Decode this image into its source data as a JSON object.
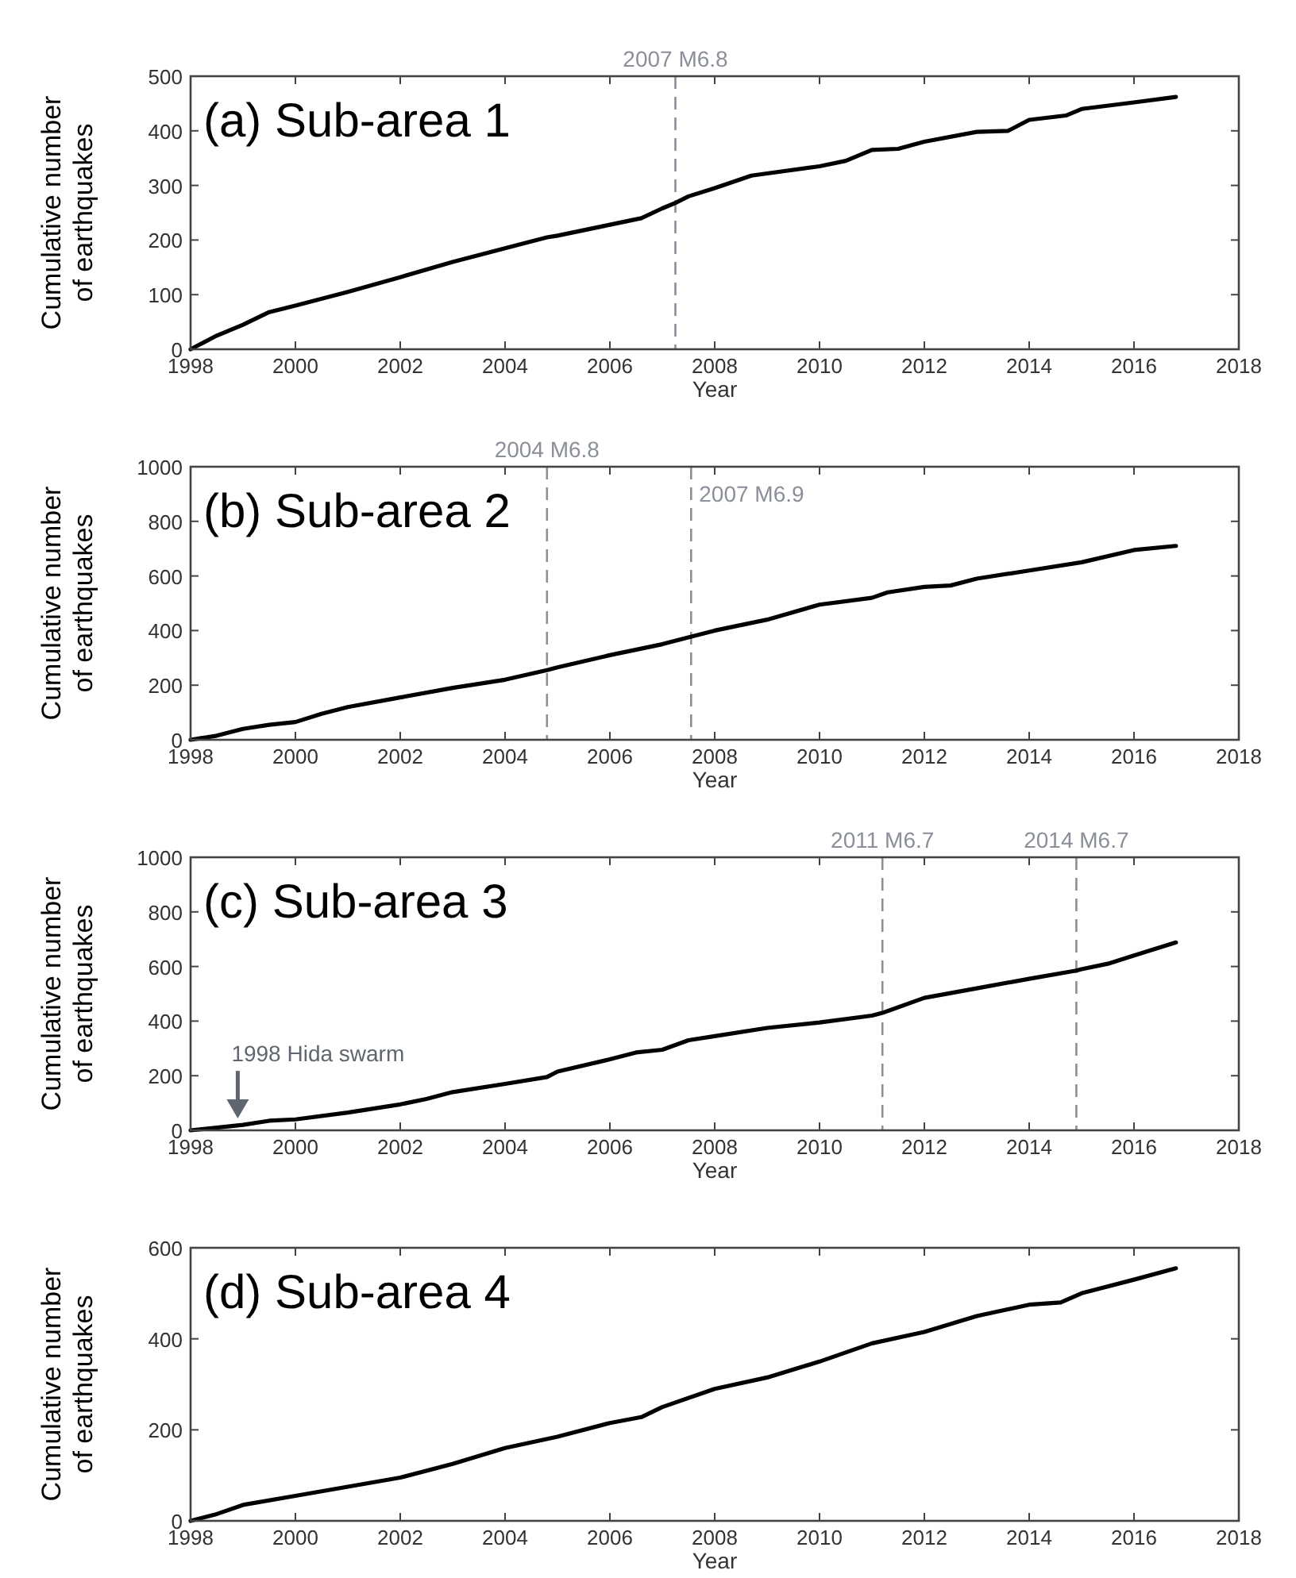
{
  "chart_data": [
    {
      "type": "line",
      "title": "(a) Sub-area 1",
      "xlabel": "Year",
      "ylabel": "Cumulative number\nof earthquakes",
      "color": "#000000",
      "grid": false,
      "xlim": [
        1998,
        2018
      ],
      "xticks": [
        1998,
        2000,
        2002,
        2004,
        2006,
        2008,
        2010,
        2012,
        2014,
        2016,
        2018
      ],
      "ylim": [
        0,
        500
      ],
      "yticks": [
        0,
        100,
        200,
        300,
        400,
        500
      ],
      "x": [
        1998,
        1998.5,
        1999,
        1999.5,
        2000,
        2001,
        2002,
        2003,
        2004,
        2004.8,
        2005,
        2006,
        2006.6,
        2007,
        2007.25,
        2007.5,
        2008,
        2008.7,
        2009,
        2010,
        2010.5,
        2011,
        2011.5,
        2012,
        2013,
        2013.6,
        2014,
        2014.7,
        2015,
        2016,
        2016.8
      ],
      "values": [
        0,
        25,
        45,
        68,
        80,
        105,
        132,
        160,
        185,
        205,
        208,
        228,
        240,
        258,
        268,
        280,
        295,
        318,
        322,
        335,
        345,
        365,
        367,
        380,
        398,
        400,
        420,
        428,
        440,
        452,
        462
      ],
      "ref_lines": [
        {
          "axis": "x",
          "value": 2007.25,
          "label": "2007 M6.8",
          "color": "#8a8f99",
          "line_style": "dashed"
        }
      ]
    },
    {
      "type": "line",
      "title": "(b) Sub-area 2",
      "xlabel": "Year",
      "ylabel": "Cumulative number\nof earthquakes",
      "color": "#000000",
      "grid": false,
      "xlim": [
        1998,
        2018
      ],
      "xticks": [
        1998,
        2000,
        2002,
        2004,
        2006,
        2008,
        2010,
        2012,
        2014,
        2016,
        2018
      ],
      "ylim": [
        0,
        1000
      ],
      "yticks": [
        0,
        200,
        400,
        600,
        800,
        1000
      ],
      "x": [
        1998,
        1998.5,
        1999,
        1999.5,
        2000,
        2000.5,
        2001,
        2002,
        2003,
        2004,
        2004.8,
        2005,
        2006,
        2007,
        2007.6,
        2008,
        2009,
        2010,
        2011,
        2011.3,
        2012,
        2012.5,
        2013,
        2014,
        2015,
        2016,
        2016.8
      ],
      "values": [
        0,
        15,
        40,
        55,
        65,
        95,
        120,
        155,
        190,
        220,
        255,
        265,
        310,
        350,
        380,
        400,
        440,
        495,
        520,
        540,
        560,
        565,
        590,
        620,
        650,
        695,
        710
      ],
      "ref_lines": [
        {
          "axis": "x",
          "value": 2004.8,
          "label": "2004 M6.8",
          "color": "#8a8f99",
          "line_style": "dashed"
        },
        {
          "axis": "x",
          "value": 2007.55,
          "label": "2007 M6.9",
          "color": "#8a8f99",
          "line_style": "dashed"
        }
      ]
    },
    {
      "type": "line",
      "title": "(c) Sub-area 3",
      "xlabel": "Year",
      "ylabel": "Cumulative number\nof earthquakes",
      "color": "#000000",
      "grid": false,
      "xlim": [
        1998,
        2018
      ],
      "xticks": [
        1998,
        2000,
        2002,
        2004,
        2006,
        2008,
        2010,
        2012,
        2014,
        2016,
        2018
      ],
      "ylim": [
        0,
        1000
      ],
      "yticks": [
        0,
        200,
        400,
        600,
        800,
        1000
      ],
      "x": [
        1998,
        1999,
        1999.5,
        2000,
        2001,
        2002,
        2002.5,
        2003,
        2004,
        2004.8,
        2005,
        2006,
        2006.5,
        2007,
        2007.5,
        2008,
        2009,
        2010,
        2011,
        2011.2,
        2012,
        2013,
        2014,
        2014.9,
        2015,
        2015.5,
        2016,
        2016.8
      ],
      "values": [
        0,
        20,
        35,
        40,
        65,
        95,
        115,
        140,
        170,
        195,
        215,
        260,
        285,
        295,
        330,
        345,
        375,
        395,
        420,
        430,
        485,
        520,
        555,
        585,
        590,
        610,
        640,
        688
      ],
      "ref_lines": [
        {
          "axis": "x",
          "value": 2011.2,
          "label": "2011 M6.7",
          "color": "#8a8f99",
          "line_style": "dashed"
        },
        {
          "axis": "x",
          "value": 2014.9,
          "label": "2014 M6.7",
          "color": "#8a8f99",
          "line_style": "dashed"
        }
      ],
      "annotations": [
        {
          "text": "1998 Hida swarm",
          "x": 1998.9,
          "y": 20
        }
      ]
    },
    {
      "type": "line",
      "title": "(d) Sub-area 4",
      "xlabel": "Year",
      "ylabel": "Cumulative number\nof earthquakes",
      "color": "#000000",
      "grid": false,
      "xlim": [
        1998,
        2018
      ],
      "xticks": [
        1998,
        2000,
        2002,
        2004,
        2006,
        2008,
        2010,
        2012,
        2014,
        2016,
        2018
      ],
      "ylim": [
        0,
        600
      ],
      "yticks": [
        0,
        200,
        400,
        600
      ],
      "x": [
        1998,
        1998.5,
        1999,
        2000,
        2001,
        2002,
        2003,
        2004,
        2005,
        2006,
        2006.6,
        2007,
        2008,
        2009,
        2010,
        2011,
        2012,
        2013,
        2014,
        2014.6,
        2015,
        2016,
        2016.8
      ],
      "values": [
        0,
        15,
        35,
        55,
        75,
        95,
        125,
        160,
        185,
        215,
        228,
        250,
        290,
        315,
        350,
        390,
        415,
        450,
        475,
        480,
        500,
        530,
        555
      ]
    }
  ]
}
